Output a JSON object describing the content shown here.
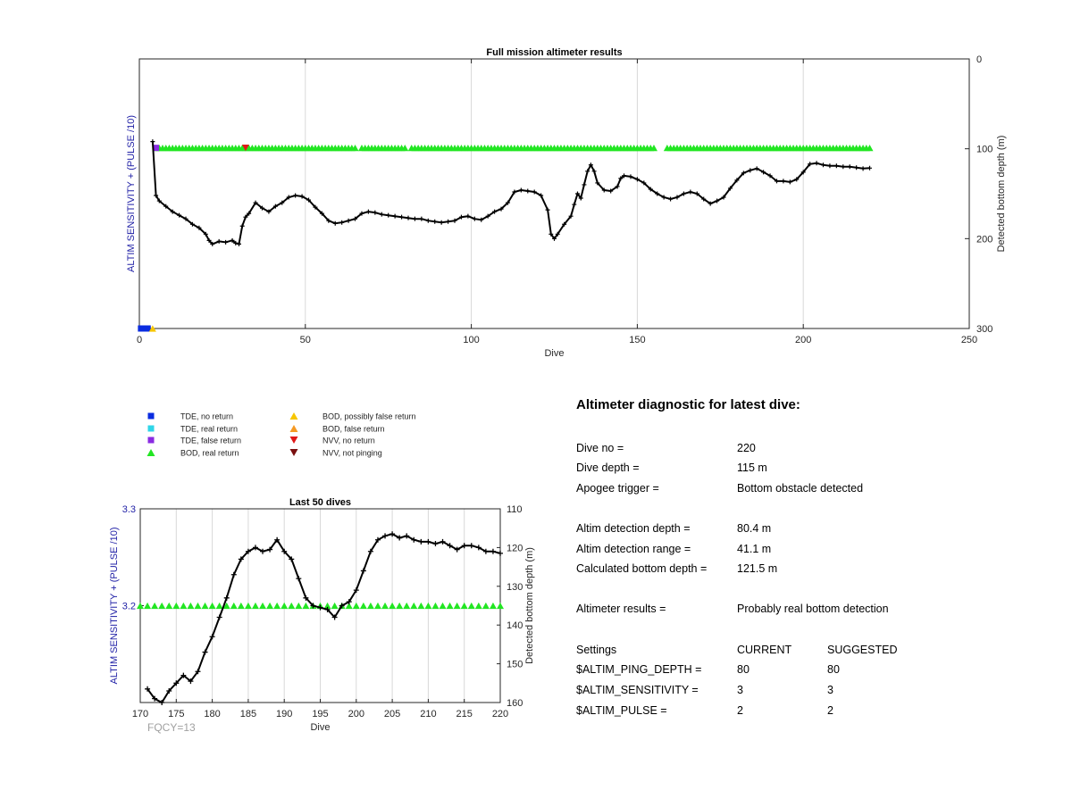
{
  "chart_data": [
    {
      "type": "line",
      "title": "Full mission altimeter results",
      "xlabel": "Dive",
      "ylabel_left": "ALTIM SENSITIVITY + (PULSE /10)",
      "ylabel_right": "Detected bottom depth (m)",
      "xlim": [
        0,
        250
      ],
      "xticks": [
        0,
        50,
        100,
        150,
        200,
        250
      ],
      "y_right_lim": [
        0,
        300
      ],
      "y_right_reversed": true,
      "y_right_ticks": [
        0,
        100,
        200,
        300
      ],
      "grid": "vertical",
      "series": [
        {
          "name": "BOD, real return",
          "kind": "markers",
          "marker": "triangle-up",
          "color": "#22e622",
          "x_ranges": [
            [
              5,
              65
            ],
            [
              67,
              80
            ],
            [
              82,
              155
            ],
            [
              159,
              220
            ]
          ],
          "y_right": 99
        },
        {
          "name": "TDE, no return",
          "kind": "markers",
          "marker": "square",
          "color": "#0a2ce0",
          "x": [
            0.5,
            1.5,
            2.5
          ],
          "y_right": 300
        },
        {
          "name": "BOD, possibly false return",
          "kind": "markers",
          "marker": "triangle-up",
          "color": "#f7c600",
          "x": [
            4
          ],
          "y_right": 300
        },
        {
          "name": "TDE, false return",
          "kind": "markers",
          "marker": "square",
          "color": "#8a2be2",
          "x": [
            5
          ],
          "y_right": 99
        },
        {
          "name": "NVV, no return",
          "kind": "markers",
          "marker": "triangle-down",
          "color": "#e01818",
          "x": [
            32
          ],
          "y_right": 99
        },
        {
          "name": "Detected bottom depth",
          "kind": "line",
          "color": "#000000",
          "points": [
            [
              4,
              92
            ],
            [
              5,
              152
            ],
            [
              6,
              158
            ],
            [
              8,
              164
            ],
            [
              10,
              170
            ],
            [
              12,
              174
            ],
            [
              14,
              178
            ],
            [
              16,
              184
            ],
            [
              18,
              188
            ],
            [
              20,
              195
            ],
            [
              21,
              202
            ],
            [
              22,
              206
            ],
            [
              24,
              203
            ],
            [
              26,
              204
            ],
            [
              28,
              202
            ],
            [
              29,
              205
            ],
            [
              30,
              206
            ],
            [
              31,
              186
            ],
            [
              32,
              176
            ],
            [
              33,
              172
            ],
            [
              35,
              160
            ],
            [
              37,
              166
            ],
            [
              39,
              170
            ],
            [
              41,
              164
            ],
            [
              43,
              160
            ],
            [
              45,
              154
            ],
            [
              47,
              152
            ],
            [
              49,
              153
            ],
            [
              51,
              157
            ],
            [
              53,
              165
            ],
            [
              55,
              172
            ],
            [
              57,
              180
            ],
            [
              59,
              183
            ],
            [
              61,
              182
            ],
            [
              63,
              180
            ],
            [
              65,
              178
            ],
            [
              67,
              172
            ],
            [
              69,
              170
            ],
            [
              71,
              171
            ],
            [
              73,
              173
            ],
            [
              75,
              174
            ],
            [
              77,
              175
            ],
            [
              79,
              176
            ],
            [
              81,
              177
            ],
            [
              83,
              178
            ],
            [
              85,
              178
            ],
            [
              87,
              180
            ],
            [
              89,
              181
            ],
            [
              91,
              182
            ],
            [
              93,
              181
            ],
            [
              95,
              180
            ],
            [
              97,
              176
            ],
            [
              99,
              175
            ],
            [
              101,
              178
            ],
            [
              103,
              179
            ],
            [
              105,
              175
            ],
            [
              107,
              170
            ],
            [
              109,
              167
            ],
            [
              111,
              160
            ],
            [
              113,
              148
            ],
            [
              115,
              146
            ],
            [
              117,
              147
            ],
            [
              119,
              148
            ],
            [
              121,
              152
            ],
            [
              123,
              168
            ],
            [
              124,
              195
            ],
            [
              125,
              200
            ],
            [
              126,
              195
            ],
            [
              128,
              184
            ],
            [
              130,
              175
            ],
            [
              131,
              162
            ],
            [
              132,
              150
            ],
            [
              133,
              155
            ],
            [
              134,
              140
            ],
            [
              135,
              125
            ],
            [
              136,
              118
            ],
            [
              137,
              125
            ],
            [
              138,
              138
            ],
            [
              140,
              146
            ],
            [
              142,
              147
            ],
            [
              144,
              142
            ],
            [
              145,
              133
            ],
            [
              146,
              130
            ],
            [
              148,
              131
            ],
            [
              150,
              134
            ],
            [
              152,
              138
            ],
            [
              154,
              145
            ],
            [
              156,
              150
            ],
            [
              158,
              154
            ],
            [
              160,
              156
            ],
            [
              162,
              154
            ],
            [
              164,
              150
            ],
            [
              166,
              148
            ],
            [
              168,
              150
            ],
            [
              170,
              156
            ],
            [
              172,
              161
            ],
            [
              174,
              158
            ],
            [
              176,
              154
            ],
            [
              178,
              144
            ],
            [
              180,
              135
            ],
            [
              182,
              127
            ],
            [
              184,
              124
            ],
            [
              186,
              122
            ],
            [
              188,
              126
            ],
            [
              190,
              130
            ],
            [
              192,
              136
            ],
            [
              194,
              136
            ],
            [
              196,
              137
            ],
            [
              198,
              134
            ],
            [
              200,
              126
            ],
            [
              202,
              117
            ],
            [
              204,
              116
            ],
            [
              206,
              118
            ],
            [
              208,
              119
            ],
            [
              210,
              119
            ],
            [
              212,
              120
            ],
            [
              214,
              120
            ],
            [
              216,
              121
            ],
            [
              218,
              122
            ],
            [
              220,
              121.5
            ]
          ]
        }
      ]
    },
    {
      "type": "line",
      "title": "Last 50 dives",
      "xlabel": "Dive",
      "ylabel_left": "ALTIM SENSITIVITY + (PULSE /10)",
      "ylabel_right": "Detected bottom depth (m)",
      "xlim": [
        170,
        220
      ],
      "xticks": [
        170,
        175,
        180,
        185,
        190,
        195,
        200,
        205,
        210,
        215,
        220
      ],
      "y_left_lim": [
        3.1,
        3.3
      ],
      "y_left_ticks": [
        3.2,
        3.3
      ],
      "y_right_lim": [
        110,
        160
      ],
      "y_right_reversed": true,
      "y_right_ticks": [
        110,
        120,
        130,
        140,
        150,
        160
      ],
      "grid": "vertical",
      "series": [
        {
          "name": "BOD, real return",
          "kind": "markers",
          "marker": "triangle-up",
          "color": "#22e622",
          "x_ranges": [
            [
              170,
              220
            ]
          ],
          "y_left": 3.2
        },
        {
          "name": "Detected bottom depth",
          "kind": "line",
          "color": "#000000",
          "points": [
            [
              171,
              156.5
            ],
            [
              172,
              159
            ],
            [
              173,
              160
            ],
            [
              174,
              157
            ],
            [
              175,
              155
            ],
            [
              176,
              153
            ],
            [
              177,
              154.5
            ],
            [
              178,
              152
            ],
            [
              179,
              147
            ],
            [
              180,
              143
            ],
            [
              181,
              138
            ],
            [
              182,
              133
            ],
            [
              183,
              127
            ],
            [
              184,
              123
            ],
            [
              185,
              121
            ],
            [
              186,
              120
            ],
            [
              187,
              121
            ],
            [
              188,
              120.5
            ],
            [
              189,
              118
            ],
            [
              190,
              121
            ],
            [
              191,
              123
            ],
            [
              192,
              128
            ],
            [
              193,
              133
            ],
            [
              194,
              135
            ],
            [
              195,
              135.5
            ],
            [
              196,
              136
            ],
            [
              197,
              138
            ],
            [
              198,
              135
            ],
            [
              199,
              134
            ],
            [
              200,
              131
            ],
            [
              201,
              126
            ],
            [
              202,
              121
            ],
            [
              203,
              118
            ],
            [
              204,
              117
            ],
            [
              205,
              116.5
            ],
            [
              206,
              117.5
            ],
            [
              207,
              117
            ],
            [
              208,
              118
            ],
            [
              209,
              118.5
            ],
            [
              210,
              118.5
            ],
            [
              211,
              119
            ],
            [
              212,
              118.5
            ],
            [
              213,
              119.5
            ],
            [
              214,
              120.5
            ],
            [
              215,
              119.5
            ],
            [
              216,
              119.5
            ],
            [
              217,
              120
            ],
            [
              218,
              121
            ],
            [
              219,
              121
            ],
            [
              220,
              121.5
            ]
          ]
        }
      ]
    }
  ],
  "legend": {
    "items": [
      {
        "label": "TDE, no return",
        "marker": "square",
        "color": "#0a2ce0"
      },
      {
        "label": "TDE, real return",
        "marker": "square",
        "color": "#2fd6e8"
      },
      {
        "label": "TDE, false return",
        "marker": "square",
        "color": "#8a2be2"
      },
      {
        "label": "BOD, real return",
        "marker": "triangle-up",
        "color": "#22e622"
      },
      {
        "label": "BOD, possibly false return",
        "marker": "triangle-up",
        "color": "#f7c600"
      },
      {
        "label": "BOD, false return",
        "marker": "triangle-up",
        "color": "#f59a23"
      },
      {
        "label": "NVV, no return",
        "marker": "triangle-down",
        "color": "#e01818"
      },
      {
        "label": "NVV, not pinging",
        "marker": "triangle-down",
        "color": "#7a1010"
      }
    ]
  },
  "diagnostic": {
    "title": "Altimeter diagnostic for latest dive:",
    "dive_no_label": "Dive no =",
    "dive_no": "220",
    "dive_depth_label": "Dive depth =",
    "dive_depth": "115 m",
    "apogee_label": "Apogee trigger =",
    "apogee": "Bottom obstacle detected",
    "det_depth_label": "Altim detection depth =",
    "det_depth": "80.4 m",
    "det_range_label": "Altim detection range =",
    "det_range": "41.1 m",
    "calc_depth_label": "Calculated bottom depth =",
    "calc_depth": "121.5 m",
    "results_label": "Altimeter results =",
    "results": "Probably real bottom detection",
    "settings_label": "Settings",
    "current_label": "CURRENT",
    "suggested_label": "SUGGESTED",
    "settings": [
      {
        "name": "$ALTIM_PING_DEPTH =",
        "current": "80",
        "suggested": "80"
      },
      {
        "name": "$ALTIM_SENSITIVITY =",
        "current": "3",
        "suggested": "3"
      },
      {
        "name": "$ALTIM_PULSE =",
        "current": "2",
        "suggested": "2"
      }
    ]
  },
  "footer": {
    "fqcy": "FQCY=13"
  },
  "colors": {
    "axis_left": "#1f1fa6",
    "grid": "#d8d8d8"
  }
}
